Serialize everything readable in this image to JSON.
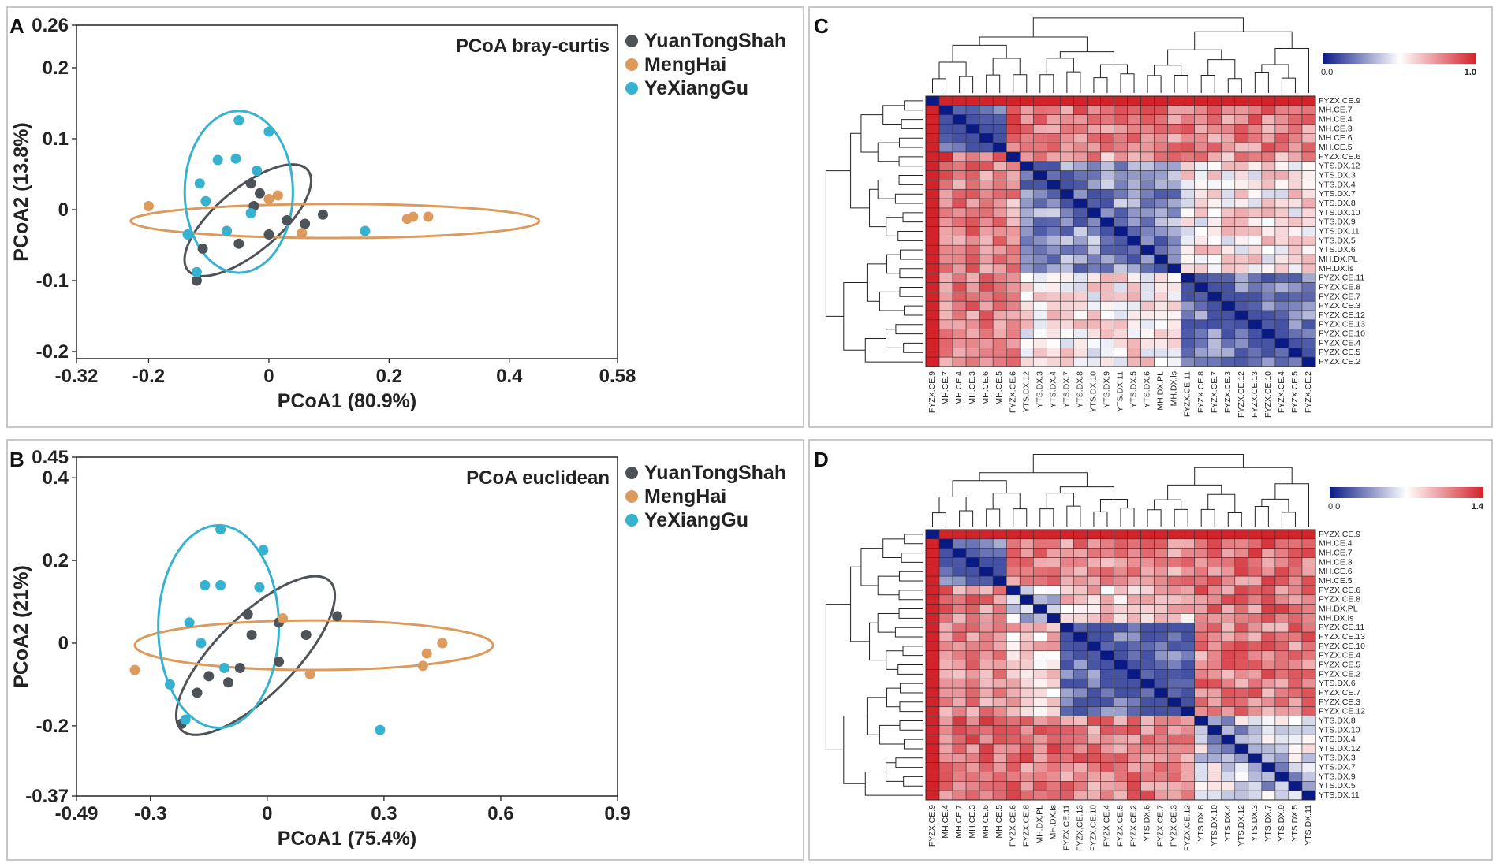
{
  "panels": {
    "A": "A",
    "B": "B",
    "C": "C",
    "D": "D"
  },
  "colors": {
    "YuanTongShah": "#4d5358",
    "MengHai": "#dc9a5c",
    "YeXiangGu": "#36b2d0",
    "heat_low": "#0a1a85",
    "heat_mid": "#ffffff",
    "heat_high": "#d2232b"
  },
  "chart_data": [
    {
      "id": "A",
      "type": "scatter",
      "title": "PCoA bray-curtis",
      "xlabel": "PCoA1 (80.9%)",
      "ylabel": "PCoA2 (13.8%)",
      "xlim": [
        -0.32,
        0.58
      ],
      "ylim": [
        -0.21,
        0.26
      ],
      "xticks": [
        -0.32,
        -0.2,
        0,
        0.2,
        0.4,
        0.58
      ],
      "xtick_labels": [
        "-0.32",
        "-0.2",
        "0",
        "0.2",
        "0.4",
        "0.58"
      ],
      "yticks": [
        -0.2,
        -0.1,
        0,
        0.1,
        0.2,
        0.26
      ],
      "ytick_labels": [
        "-0.2",
        "-0.1",
        "0",
        "0.1",
        "0.2",
        "0.26"
      ],
      "legend": [
        "YuanTongShah",
        "MengHai",
        "YeXiangGu"
      ],
      "series": [
        {
          "name": "YuanTongShah",
          "points": [
            [
              -0.03,
              0.037
            ],
            [
              -0.015,
              0.023
            ],
            [
              -0.025,
              0.005
            ],
            [
              0.0,
              -0.035
            ],
            [
              0.06,
              -0.02
            ],
            [
              0.09,
              -0.007
            ],
            [
              0.03,
              -0.015
            ],
            [
              -0.07,
              -0.03
            ],
            [
              -0.05,
              -0.048
            ],
            [
              -0.11,
              -0.055
            ],
            [
              -0.12,
              -0.1
            ]
          ]
        },
        {
          "name": "MengHai",
          "points": [
            [
              -0.2,
              0.005
            ],
            [
              0.0,
              0.015
            ],
            [
              0.015,
              0.02
            ],
            [
              0.055,
              -0.033
            ],
            [
              0.23,
              -0.013
            ],
            [
              0.24,
              -0.01
            ],
            [
              0.265,
              -0.01
            ]
          ]
        },
        {
          "name": "YeXiangGu",
          "points": [
            [
              -0.05,
              0.126
            ],
            [
              0.0,
              0.11
            ],
            [
              -0.085,
              0.07
            ],
            [
              -0.055,
              0.072
            ],
            [
              -0.02,
              0.055
            ],
            [
              -0.115,
              0.037
            ],
            [
              -0.105,
              0.012
            ],
            [
              -0.03,
              -0.005
            ],
            [
              -0.135,
              -0.035
            ],
            [
              -0.07,
              -0.03
            ],
            [
              0.16,
              -0.03
            ],
            [
              -0.12,
              -0.088
            ]
          ]
        }
      ],
      "ellipses": [
        {
          "group": "YuanTongShah",
          "center": [
            -0.035,
            -0.015
          ],
          "rx": 0.13,
          "ry": 0.045,
          "angle_deg": -40
        },
        {
          "group": "MengHai",
          "center": [
            0.11,
            -0.016
          ],
          "rx": 0.34,
          "ry": 0.024,
          "angle_deg": 0
        },
        {
          "group": "YeXiangGu",
          "center": [
            -0.05,
            0.025
          ],
          "rx": 0.09,
          "ry": 0.114,
          "angle_deg": 0
        }
      ]
    },
    {
      "id": "B",
      "type": "scatter",
      "title": "PCoA euclidean",
      "xlabel": "PCoA1 (75.4%)",
      "ylabel": "PCoA2 (21%)",
      "xlim": [
        -0.49,
        0.9
      ],
      "ylim": [
        -0.37,
        0.45
      ],
      "xticks": [
        -0.49,
        -0.3,
        0,
        0.3,
        0.6,
        0.9
      ],
      "xtick_labels": [
        "-0.49",
        "-0.3",
        "0",
        "0.3",
        "0.6",
        "0.9"
      ],
      "yticks": [
        -0.37,
        -0.2,
        0,
        0.2,
        0.4,
        0.45
      ],
      "ytick_labels": [
        "-0.37",
        "-0.2",
        "0",
        "0.2",
        "0.4",
        "0.45"
      ],
      "legend": [
        "YuanTongShah",
        "MengHai",
        "YeXiangGu"
      ],
      "series": [
        {
          "name": "YuanTongShah",
          "points": [
            [
              -0.05,
              0.07
            ],
            [
              0.03,
              0.05
            ],
            [
              0.18,
              0.065
            ],
            [
              -0.04,
              0.02
            ],
            [
              0.1,
              0.02
            ],
            [
              0.03,
              -0.045
            ],
            [
              -0.07,
              -0.06
            ],
            [
              -0.15,
              -0.08
            ],
            [
              -0.1,
              -0.095
            ],
            [
              -0.18,
              -0.12
            ],
            [
              -0.22,
              -0.195
            ]
          ]
        },
        {
          "name": "MengHai",
          "points": [
            [
              -0.34,
              -0.065
            ],
            [
              0.04,
              0.06
            ],
            [
              0.11,
              -0.075
            ],
            [
              0.41,
              -0.025
            ],
            [
              0.45,
              0.0
            ],
            [
              0.4,
              -0.055
            ]
          ]
        },
        {
          "name": "YeXiangGu",
          "points": [
            [
              -0.12,
              0.275
            ],
            [
              -0.01,
              0.225
            ],
            [
              -0.16,
              0.14
            ],
            [
              -0.12,
              0.14
            ],
            [
              -0.02,
              0.135
            ],
            [
              -0.2,
              0.05
            ],
            [
              -0.17,
              0.0
            ],
            [
              -0.11,
              -0.06
            ],
            [
              -0.25,
              -0.1
            ],
            [
              -0.21,
              -0.185
            ],
            [
              0.29,
              -0.21
            ]
          ]
        }
      ],
      "ellipses": [
        {
          "group": "YuanTongShah",
          "center": [
            -0.03,
            -0.03
          ],
          "rx": 0.27,
          "ry": 0.095,
          "angle_deg": -45
        },
        {
          "group": "MengHai",
          "center": [
            0.12,
            -0.005
          ],
          "rx": 0.46,
          "ry": 0.06,
          "angle_deg": 0
        },
        {
          "group": "YeXiangGu",
          "center": [
            -0.125,
            0.04
          ],
          "rx": 0.155,
          "ry": 0.245,
          "angle_deg": 0
        }
      ]
    },
    {
      "id": "C",
      "type": "heatmap",
      "scale_min": "0.0",
      "scale_max": "1.0",
      "labels": [
        "FYZX.CE.9",
        "MH.CE.7",
        "MH.CE.4",
        "MH.CE.3",
        "MH.CE.6",
        "MH.CE.5",
        "FYZX.CE.6",
        "YTS.DX.12",
        "YTS.DX.3",
        "YTS.DX.4",
        "YTS.DX.7",
        "YTS.DX.8",
        "YTS.DX.10",
        "YTS.DX.9",
        "YTS.DX.11",
        "YTS.DX.5",
        "YTS.DX.6",
        "MH.DX.PL",
        "MH.DX.ls",
        "FYZX.CE.11",
        "FYZX.CE.8",
        "FYZX.CE.7",
        "FYZX.CE.3",
        "FYZX.CE.12",
        "FYZX.CE.13",
        "FYZX.CE.10",
        "FYZX.CE.4",
        "FYZX.CE.5",
        "FYZX.CE.2"
      ],
      "groups": [
        [
          0,
          0
        ],
        [
          1,
          5
        ],
        [
          6,
          6
        ],
        [
          7,
          18
        ],
        [
          19,
          28
        ]
      ],
      "block_values": [
        [
          0.0,
          1.0,
          1.0,
          1.0,
          1.0
        ],
        [
          1.0,
          0.15,
          0.85,
          0.78,
          0.78
        ],
        [
          1.0,
          0.85,
          0.0,
          0.72,
          0.72
        ],
        [
          1.0,
          0.78,
          0.72,
          0.28,
          0.55
        ],
        [
          1.0,
          0.78,
          0.72,
          0.55,
          0.22
        ]
      ]
    },
    {
      "id": "D",
      "type": "heatmap",
      "scale_min": "0.0",
      "scale_max": "1.4",
      "labels": [
        "FYZX.CE.9",
        "MH.CE.4",
        "MH.CE.7",
        "MH.CE.3",
        "MH.CE.6",
        "MH.CE.5",
        "FYZX.CE.6",
        "FYZX.CE.8",
        "MH.DX.PL",
        "MH.DX.ls",
        "FYZX.CE.11",
        "FYZX.CE.13",
        "FYZX.CE.10",
        "FYZX.CE.4",
        "FYZX.CE.5",
        "FYZX.CE.2",
        "YTS.DX.6",
        "FYZX.CE.7",
        "FYZX.CE.3",
        "FYZX.CE.12",
        "YTS.DX.8",
        "YTS.DX.10",
        "YTS.DX.4",
        "YTS.DX.12",
        "YTS.DX.3",
        "YTS.DX.7",
        "YTS.DX.9",
        "YTS.DX.5",
        "YTS.DX.11"
      ],
      "groups": [
        [
          0,
          0
        ],
        [
          1,
          5
        ],
        [
          6,
          9
        ],
        [
          10,
          19
        ],
        [
          20,
          28
        ]
      ],
      "block_values": [
        [
          0.0,
          1.0,
          1.0,
          1.0,
          1.0
        ],
        [
          1.0,
          0.2,
          0.78,
          0.75,
          0.82
        ],
        [
          1.0,
          0.78,
          0.5,
          0.62,
          0.8
        ],
        [
          1.0,
          0.75,
          0.62,
          0.18,
          0.78
        ],
        [
          1.0,
          0.82,
          0.8,
          0.78,
          0.45
        ]
      ]
    }
  ]
}
